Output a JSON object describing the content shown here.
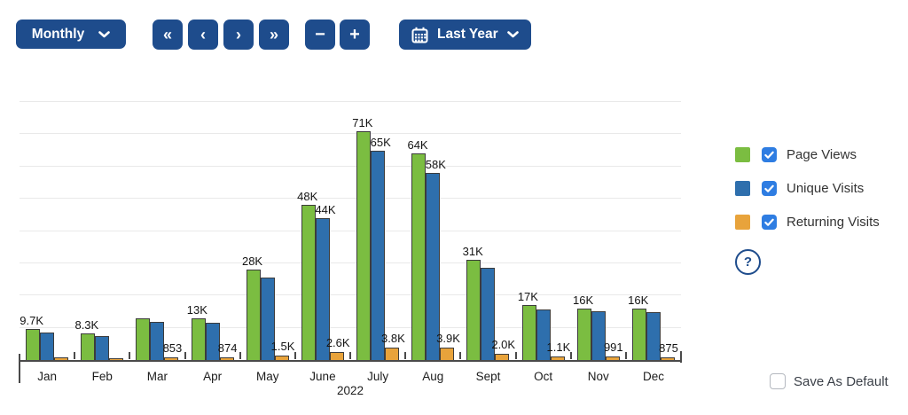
{
  "toolbar": {
    "period_dropdown": {
      "label": "Monthly"
    },
    "nav": {
      "first": "«",
      "prev": "‹",
      "next": "›",
      "last": "»"
    },
    "zoom": {
      "out": "−",
      "in": "+"
    },
    "range_dropdown": {
      "label": "Last Year"
    }
  },
  "chart_data": {
    "type": "bar",
    "title": "",
    "x_axis_label": "2022",
    "categories": [
      "Jan",
      "Feb",
      "Mar",
      "Apr",
      "May",
      "June",
      "July",
      "Aug",
      "Sept",
      "Oct",
      "Nov",
      "Dec"
    ],
    "ylim": [
      0,
      80000
    ],
    "gridline_step": 10000,
    "grid": true,
    "legend_position": "right",
    "series": [
      {
        "name": "Page Views",
        "color": "#7bbd41",
        "values": [
          9700,
          8300,
          13000,
          13000,
          28000,
          48000,
          71000,
          64000,
          31000,
          17000,
          16000,
          16000
        ],
        "bar_labels": [
          "9.7K",
          "8.3K",
          "",
          "13K",
          "28K",
          "48K",
          "71K",
          "64K",
          "31K",
          "17K",
          "16K",
          "16K"
        ]
      },
      {
        "name": "Unique Visits",
        "color": "#2e6fad",
        "values": [
          8600,
          7400,
          11800,
          11500,
          25500,
          44000,
          65000,
          58000,
          28500,
          15600,
          15100,
          14800
        ],
        "bar_labels": [
          "",
          "",
          "",
          "",
          "",
          "44K",
          "65K",
          "58K",
          "",
          "",
          "",
          ""
        ]
      },
      {
        "name": "Returning Visits",
        "color": "#e8a33b",
        "values": [
          700,
          400,
          853,
          874,
          1500,
          2600,
          3800,
          3900,
          2000,
          1100,
          991,
          875
        ],
        "bar_labels": [
          "",
          "",
          "853",
          "874",
          "1.5K",
          "2.6K",
          "3.8K",
          "3.9K",
          "2.0K",
          "1.1K",
          "991",
          "875"
        ]
      }
    ]
  },
  "legend": {
    "items": [
      {
        "label": "Page Views",
        "color": "#7bbd41",
        "checked": true
      },
      {
        "label": "Unique Visits",
        "color": "#2e6fad",
        "checked": true
      },
      {
        "label": "Returning Visits",
        "color": "#e8a33b",
        "checked": true
      }
    ],
    "help_glyph": "?"
  },
  "footer": {
    "save_as_default": {
      "label": "Save As Default",
      "checked": false
    }
  },
  "colors": {
    "accent": "#1e4c8c",
    "checkbox_blue": "#2e7de2",
    "grid": "#e9e9e9",
    "axis": "#4a4a4a",
    "bar_border": "#3c3c3c"
  }
}
